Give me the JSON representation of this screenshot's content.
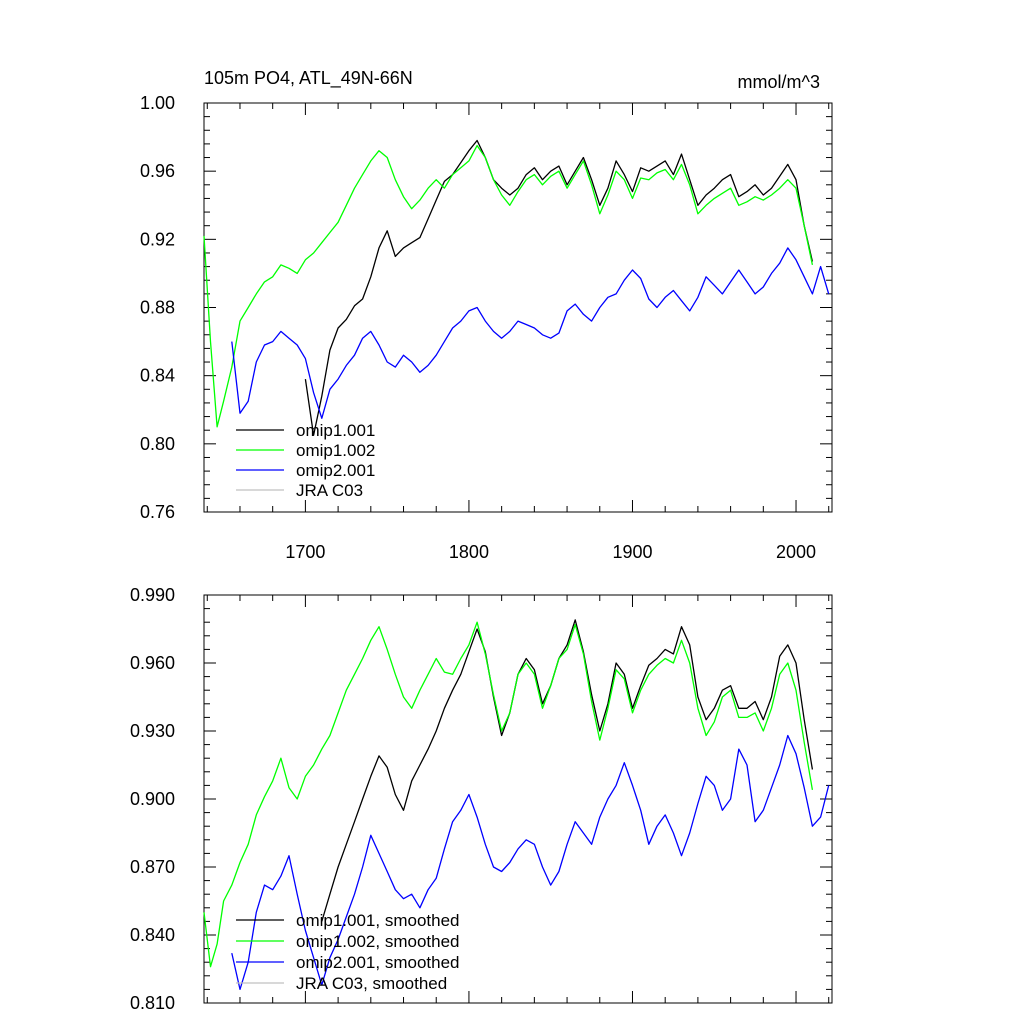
{
  "figure": {
    "title_left": "105m PO4, ATL_49N-66N",
    "title_right": "mmol/m^3"
  },
  "chart_data": [
    {
      "type": "line",
      "name": "top-panel",
      "title": "105m PO4, ATL_49N-66N",
      "units": "mmol/m^3",
      "xlim": [
        1638,
        2022
      ],
      "ylim": [
        0.76,
        1.0
      ],
      "xticks": [
        1700,
        1800,
        1900,
        2000
      ],
      "xtick_labels": [
        "1700",
        "1800",
        "1900",
        "2000"
      ],
      "yticks": [
        0.76,
        0.8,
        0.84,
        0.88,
        0.92,
        0.96,
        1.0
      ],
      "ytick_labels": [
        "0.76",
        "0.80",
        "0.84",
        "0.88",
        "0.92",
        "0.96",
        "1.00"
      ],
      "legend_position": "bottom-left",
      "series": [
        {
          "name": "omip1.001",
          "color": "#000000",
          "x": [
            1700,
            1705,
            1710,
            1715,
            1720,
            1725,
            1730,
            1735,
            1740,
            1745,
            1750,
            1755,
            1760,
            1765,
            1770,
            1775,
            1780,
            1785,
            1790,
            1795,
            1800,
            1805,
            1810,
            1815,
            1820,
            1825,
            1830,
            1835,
            1840,
            1845,
            1850,
            1855,
            1860,
            1865,
            1870,
            1875,
            1880,
            1885,
            1890,
            1895,
            1900,
            1905,
            1910,
            1915,
            1920,
            1925,
            1930,
            1935,
            1940,
            1945,
            1950,
            1955,
            1960,
            1965,
            1970,
            1975,
            1980,
            1985,
            1990,
            1995,
            2000,
            2005,
            2010
          ],
          "y": [
            0.838,
            0.805,
            0.828,
            0.855,
            0.868,
            0.873,
            0.881,
            0.885,
            0.898,
            0.915,
            0.925,
            0.91,
            0.915,
            0.918,
            0.921,
            0.932,
            0.943,
            0.954,
            0.958,
            0.965,
            0.972,
            0.978,
            0.968,
            0.955,
            0.95,
            0.946,
            0.95,
            0.958,
            0.962,
            0.955,
            0.96,
            0.963,
            0.952,
            0.96,
            0.968,
            0.955,
            0.94,
            0.95,
            0.966,
            0.958,
            0.948,
            0.962,
            0.96,
            0.963,
            0.966,
            0.958,
            0.97,
            0.955,
            0.94,
            0.946,
            0.95,
            0.955,
            0.958,
            0.945,
            0.948,
            0.952,
            0.946,
            0.95,
            0.957,
            0.964,
            0.955,
            0.928,
            0.907
          ]
        },
        {
          "name": "omip1.002",
          "color": "#00ff00",
          "x": [
            1638,
            1642,
            1646,
            1650,
            1655,
            1660,
            1665,
            1670,
            1675,
            1680,
            1685,
            1690,
            1695,
            1700,
            1705,
            1710,
            1715,
            1720,
            1725,
            1730,
            1735,
            1740,
            1745,
            1750,
            1755,
            1760,
            1765,
            1770,
            1775,
            1780,
            1785,
            1790,
            1795,
            1800,
            1805,
            1810,
            1815,
            1820,
            1825,
            1830,
            1835,
            1840,
            1845,
            1850,
            1855,
            1860,
            1865,
            1870,
            1875,
            1880,
            1885,
            1890,
            1895,
            1900,
            1905,
            1910,
            1915,
            1920,
            1925,
            1930,
            1935,
            1940,
            1945,
            1950,
            1955,
            1960,
            1965,
            1970,
            1975,
            1980,
            1985,
            1990,
            1995,
            2000,
            2005,
            2010
          ],
          "y": [
            0.922,
            0.86,
            0.81,
            0.825,
            0.845,
            0.872,
            0.88,
            0.888,
            0.895,
            0.898,
            0.905,
            0.903,
            0.9,
            0.908,
            0.912,
            0.918,
            0.924,
            0.93,
            0.94,
            0.95,
            0.958,
            0.966,
            0.972,
            0.968,
            0.955,
            0.945,
            0.938,
            0.943,
            0.95,
            0.955,
            0.95,
            0.958,
            0.962,
            0.966,
            0.975,
            0.968,
            0.955,
            0.946,
            0.94,
            0.948,
            0.955,
            0.958,
            0.952,
            0.957,
            0.96,
            0.95,
            0.958,
            0.966,
            0.952,
            0.935,
            0.946,
            0.96,
            0.955,
            0.944,
            0.956,
            0.955,
            0.959,
            0.961,
            0.955,
            0.964,
            0.952,
            0.935,
            0.94,
            0.944,
            0.947,
            0.95,
            0.94,
            0.942,
            0.945,
            0.943,
            0.946,
            0.95,
            0.955,
            0.95,
            0.928,
            0.905
          ]
        },
        {
          "name": "omip2.001",
          "color": "#0000ff",
          "x": [
            1655,
            1660,
            1665,
            1670,
            1675,
            1680,
            1685,
            1690,
            1695,
            1700,
            1705,
            1710,
            1715,
            1720,
            1725,
            1730,
            1735,
            1740,
            1745,
            1750,
            1755,
            1760,
            1765,
            1770,
            1775,
            1780,
            1785,
            1790,
            1795,
            1800,
            1805,
            1810,
            1815,
            1820,
            1825,
            1830,
            1835,
            1840,
            1845,
            1850,
            1855,
            1860,
            1865,
            1870,
            1875,
            1880,
            1885,
            1890,
            1895,
            1900,
            1905,
            1910,
            1915,
            1920,
            1925,
            1930,
            1935,
            1940,
            1945,
            1950,
            1955,
            1960,
            1965,
            1970,
            1975,
            1980,
            1985,
            1990,
            1995,
            2000,
            2005,
            2010,
            2015,
            2020
          ],
          "y": [
            0.86,
            0.818,
            0.825,
            0.848,
            0.858,
            0.86,
            0.866,
            0.862,
            0.858,
            0.85,
            0.83,
            0.815,
            0.832,
            0.838,
            0.846,
            0.852,
            0.862,
            0.866,
            0.858,
            0.848,
            0.845,
            0.852,
            0.848,
            0.842,
            0.846,
            0.852,
            0.86,
            0.868,
            0.872,
            0.878,
            0.88,
            0.872,
            0.866,
            0.862,
            0.866,
            0.872,
            0.87,
            0.868,
            0.864,
            0.862,
            0.865,
            0.878,
            0.882,
            0.876,
            0.872,
            0.88,
            0.886,
            0.888,
            0.896,
            0.902,
            0.897,
            0.885,
            0.88,
            0.886,
            0.89,
            0.884,
            0.878,
            0.886,
            0.898,
            0.893,
            0.888,
            0.895,
            0.902,
            0.895,
            0.888,
            0.892,
            0.9,
            0.906,
            0.915,
            0.908,
            0.898,
            0.888,
            0.904,
            0.888
          ]
        },
        {
          "name": "JRA C03",
          "color": "#c0c0c0",
          "x": [],
          "y": []
        }
      ]
    },
    {
      "type": "line",
      "name": "bottom-panel",
      "title": "",
      "xlim": [
        1638,
        2022
      ],
      "ylim": [
        0.81,
        0.99
      ],
      "xticks": [
        1700,
        1800,
        1900,
        2000
      ],
      "xtick_labels": [],
      "yticks": [
        0.81,
        0.84,
        0.87,
        0.9,
        0.93,
        0.96,
        0.99
      ],
      "ytick_labels": [
        "0.810",
        "0.840",
        "0.870",
        "0.900",
        "0.930",
        "0.960",
        "0.990"
      ],
      "legend_position": "bottom-left",
      "series": [
        {
          "name": "omip1.001, smoothed",
          "color": "#000000",
          "x": [
            1710,
            1715,
            1720,
            1725,
            1730,
            1735,
            1740,
            1745,
            1750,
            1755,
            1760,
            1765,
            1770,
            1775,
            1780,
            1785,
            1790,
            1795,
            1800,
            1805,
            1810,
            1815,
            1820,
            1825,
            1830,
            1835,
            1840,
            1845,
            1850,
            1855,
            1860,
            1865,
            1870,
            1875,
            1880,
            1885,
            1890,
            1895,
            1900,
            1905,
            1910,
            1915,
            1920,
            1925,
            1930,
            1935,
            1940,
            1945,
            1950,
            1955,
            1960,
            1965,
            1970,
            1975,
            1980,
            1985,
            1990,
            1995,
            2000,
            2005,
            2010
          ],
          "y": [
            0.846,
            0.858,
            0.87,
            0.88,
            0.89,
            0.9,
            0.91,
            0.919,
            0.914,
            0.902,
            0.895,
            0.908,
            0.915,
            0.922,
            0.93,
            0.94,
            0.948,
            0.955,
            0.965,
            0.975,
            0.965,
            0.945,
            0.928,
            0.938,
            0.955,
            0.962,
            0.957,
            0.942,
            0.95,
            0.962,
            0.968,
            0.979,
            0.965,
            0.946,
            0.93,
            0.942,
            0.96,
            0.955,
            0.94,
            0.95,
            0.959,
            0.962,
            0.966,
            0.964,
            0.976,
            0.968,
            0.945,
            0.935,
            0.94,
            0.948,
            0.95,
            0.94,
            0.94,
            0.943,
            0.935,
            0.945,
            0.963,
            0.968,
            0.96,
            0.935,
            0.913
          ]
        },
        {
          "name": "omip1.002, smoothed",
          "color": "#00ff00",
          "x": [
            1638,
            1642,
            1646,
            1650,
            1655,
            1660,
            1665,
            1670,
            1675,
            1680,
            1685,
            1690,
            1695,
            1700,
            1705,
            1710,
            1715,
            1720,
            1725,
            1730,
            1735,
            1740,
            1745,
            1750,
            1755,
            1760,
            1765,
            1770,
            1775,
            1780,
            1785,
            1790,
            1795,
            1800,
            1805,
            1810,
            1815,
            1820,
            1825,
            1830,
            1835,
            1840,
            1845,
            1850,
            1855,
            1860,
            1865,
            1870,
            1875,
            1880,
            1885,
            1890,
            1895,
            1900,
            1905,
            1910,
            1915,
            1920,
            1925,
            1930,
            1935,
            1940,
            1945,
            1950,
            1955,
            1960,
            1965,
            1970,
            1975,
            1980,
            1985,
            1990,
            1995,
            2000,
            2005,
            2010
          ],
          "y": [
            0.85,
            0.826,
            0.836,
            0.855,
            0.862,
            0.872,
            0.88,
            0.893,
            0.901,
            0.908,
            0.918,
            0.905,
            0.9,
            0.91,
            0.915,
            0.922,
            0.928,
            0.938,
            0.948,
            0.955,
            0.962,
            0.97,
            0.976,
            0.966,
            0.955,
            0.945,
            0.94,
            0.948,
            0.955,
            0.962,
            0.956,
            0.955,
            0.962,
            0.968,
            0.978,
            0.964,
            0.946,
            0.93,
            0.938,
            0.955,
            0.96,
            0.955,
            0.94,
            0.95,
            0.962,
            0.966,
            0.977,
            0.964,
            0.943,
            0.926,
            0.94,
            0.957,
            0.953,
            0.938,
            0.948,
            0.955,
            0.959,
            0.962,
            0.96,
            0.97,
            0.96,
            0.94,
            0.928,
            0.934,
            0.945,
            0.948,
            0.936,
            0.936,
            0.938,
            0.93,
            0.94,
            0.955,
            0.96,
            0.948,
            0.925,
            0.904
          ]
        },
        {
          "name": "omip2.001, smoothed",
          "color": "#0000ff",
          "x": [
            1655,
            1660,
            1665,
            1670,
            1675,
            1680,
            1685,
            1690,
            1695,
            1700,
            1705,
            1710,
            1715,
            1720,
            1725,
            1730,
            1735,
            1740,
            1745,
            1750,
            1755,
            1760,
            1765,
            1770,
            1775,
            1780,
            1785,
            1790,
            1795,
            1800,
            1805,
            1810,
            1815,
            1820,
            1825,
            1830,
            1835,
            1840,
            1845,
            1850,
            1855,
            1860,
            1865,
            1870,
            1875,
            1880,
            1885,
            1890,
            1895,
            1900,
            1905,
            1910,
            1915,
            1920,
            1925,
            1930,
            1935,
            1940,
            1945,
            1950,
            1955,
            1960,
            1965,
            1970,
            1975,
            1980,
            1985,
            1990,
            1995,
            2000,
            2005,
            2010,
            2015,
            2020
          ],
          "y": [
            0.832,
            0.816,
            0.828,
            0.85,
            0.862,
            0.86,
            0.866,
            0.875,
            0.858,
            0.842,
            0.83,
            0.818,
            0.83,
            0.838,
            0.848,
            0.858,
            0.87,
            0.884,
            0.876,
            0.868,
            0.86,
            0.856,
            0.858,
            0.852,
            0.86,
            0.865,
            0.878,
            0.89,
            0.895,
            0.902,
            0.892,
            0.88,
            0.87,
            0.868,
            0.872,
            0.878,
            0.882,
            0.88,
            0.87,
            0.862,
            0.868,
            0.88,
            0.89,
            0.885,
            0.88,
            0.892,
            0.9,
            0.906,
            0.916,
            0.906,
            0.895,
            0.88,
            0.888,
            0.893,
            0.885,
            0.875,
            0.885,
            0.898,
            0.91,
            0.906,
            0.895,
            0.9,
            0.922,
            0.915,
            0.89,
            0.895,
            0.905,
            0.915,
            0.928,
            0.92,
            0.905,
            0.888,
            0.892,
            0.906
          ]
        },
        {
          "name": "JRA C03, smoothed",
          "color": "#c0c0c0",
          "x": [],
          "y": []
        }
      ]
    }
  ]
}
